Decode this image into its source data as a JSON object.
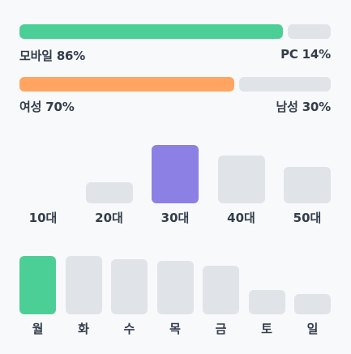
{
  "colors": {
    "device_highlight": "#4ccf96",
    "gender_highlight": "#ffa561",
    "age_highlight": "#8c80e5",
    "weekday_highlight": "#4ccf96",
    "inactive": "#e0e3e8",
    "text": "#333d4b"
  },
  "chart_data": [
    {
      "type": "bar",
      "orientation": "horizontal-stacked",
      "series": [
        {
          "name": "모바일",
          "value": 86,
          "label": "모바일 86%"
        },
        {
          "name": "PC",
          "value": 14,
          "label": "PC 14%"
        }
      ],
      "highlight_index": 0
    },
    {
      "type": "bar",
      "orientation": "horizontal-stacked",
      "series": [
        {
          "name": "여성",
          "value": 70,
          "label": "여성 70%"
        },
        {
          "name": "남성",
          "value": 30,
          "label": "남성 30%"
        }
      ],
      "highlight_index": 0
    },
    {
      "type": "bar",
      "categories": [
        "10대",
        "20대",
        "30대",
        "40대",
        "50대"
      ],
      "values": [
        0,
        36,
        100,
        82,
        62
      ],
      "highlight_index": 2
    },
    {
      "type": "bar",
      "categories": [
        "월",
        "화",
        "수",
        "목",
        "금",
        "토",
        "일"
      ],
      "values": [
        100,
        100,
        94,
        92,
        83,
        42,
        35
      ],
      "highlight_index": 0
    }
  ]
}
